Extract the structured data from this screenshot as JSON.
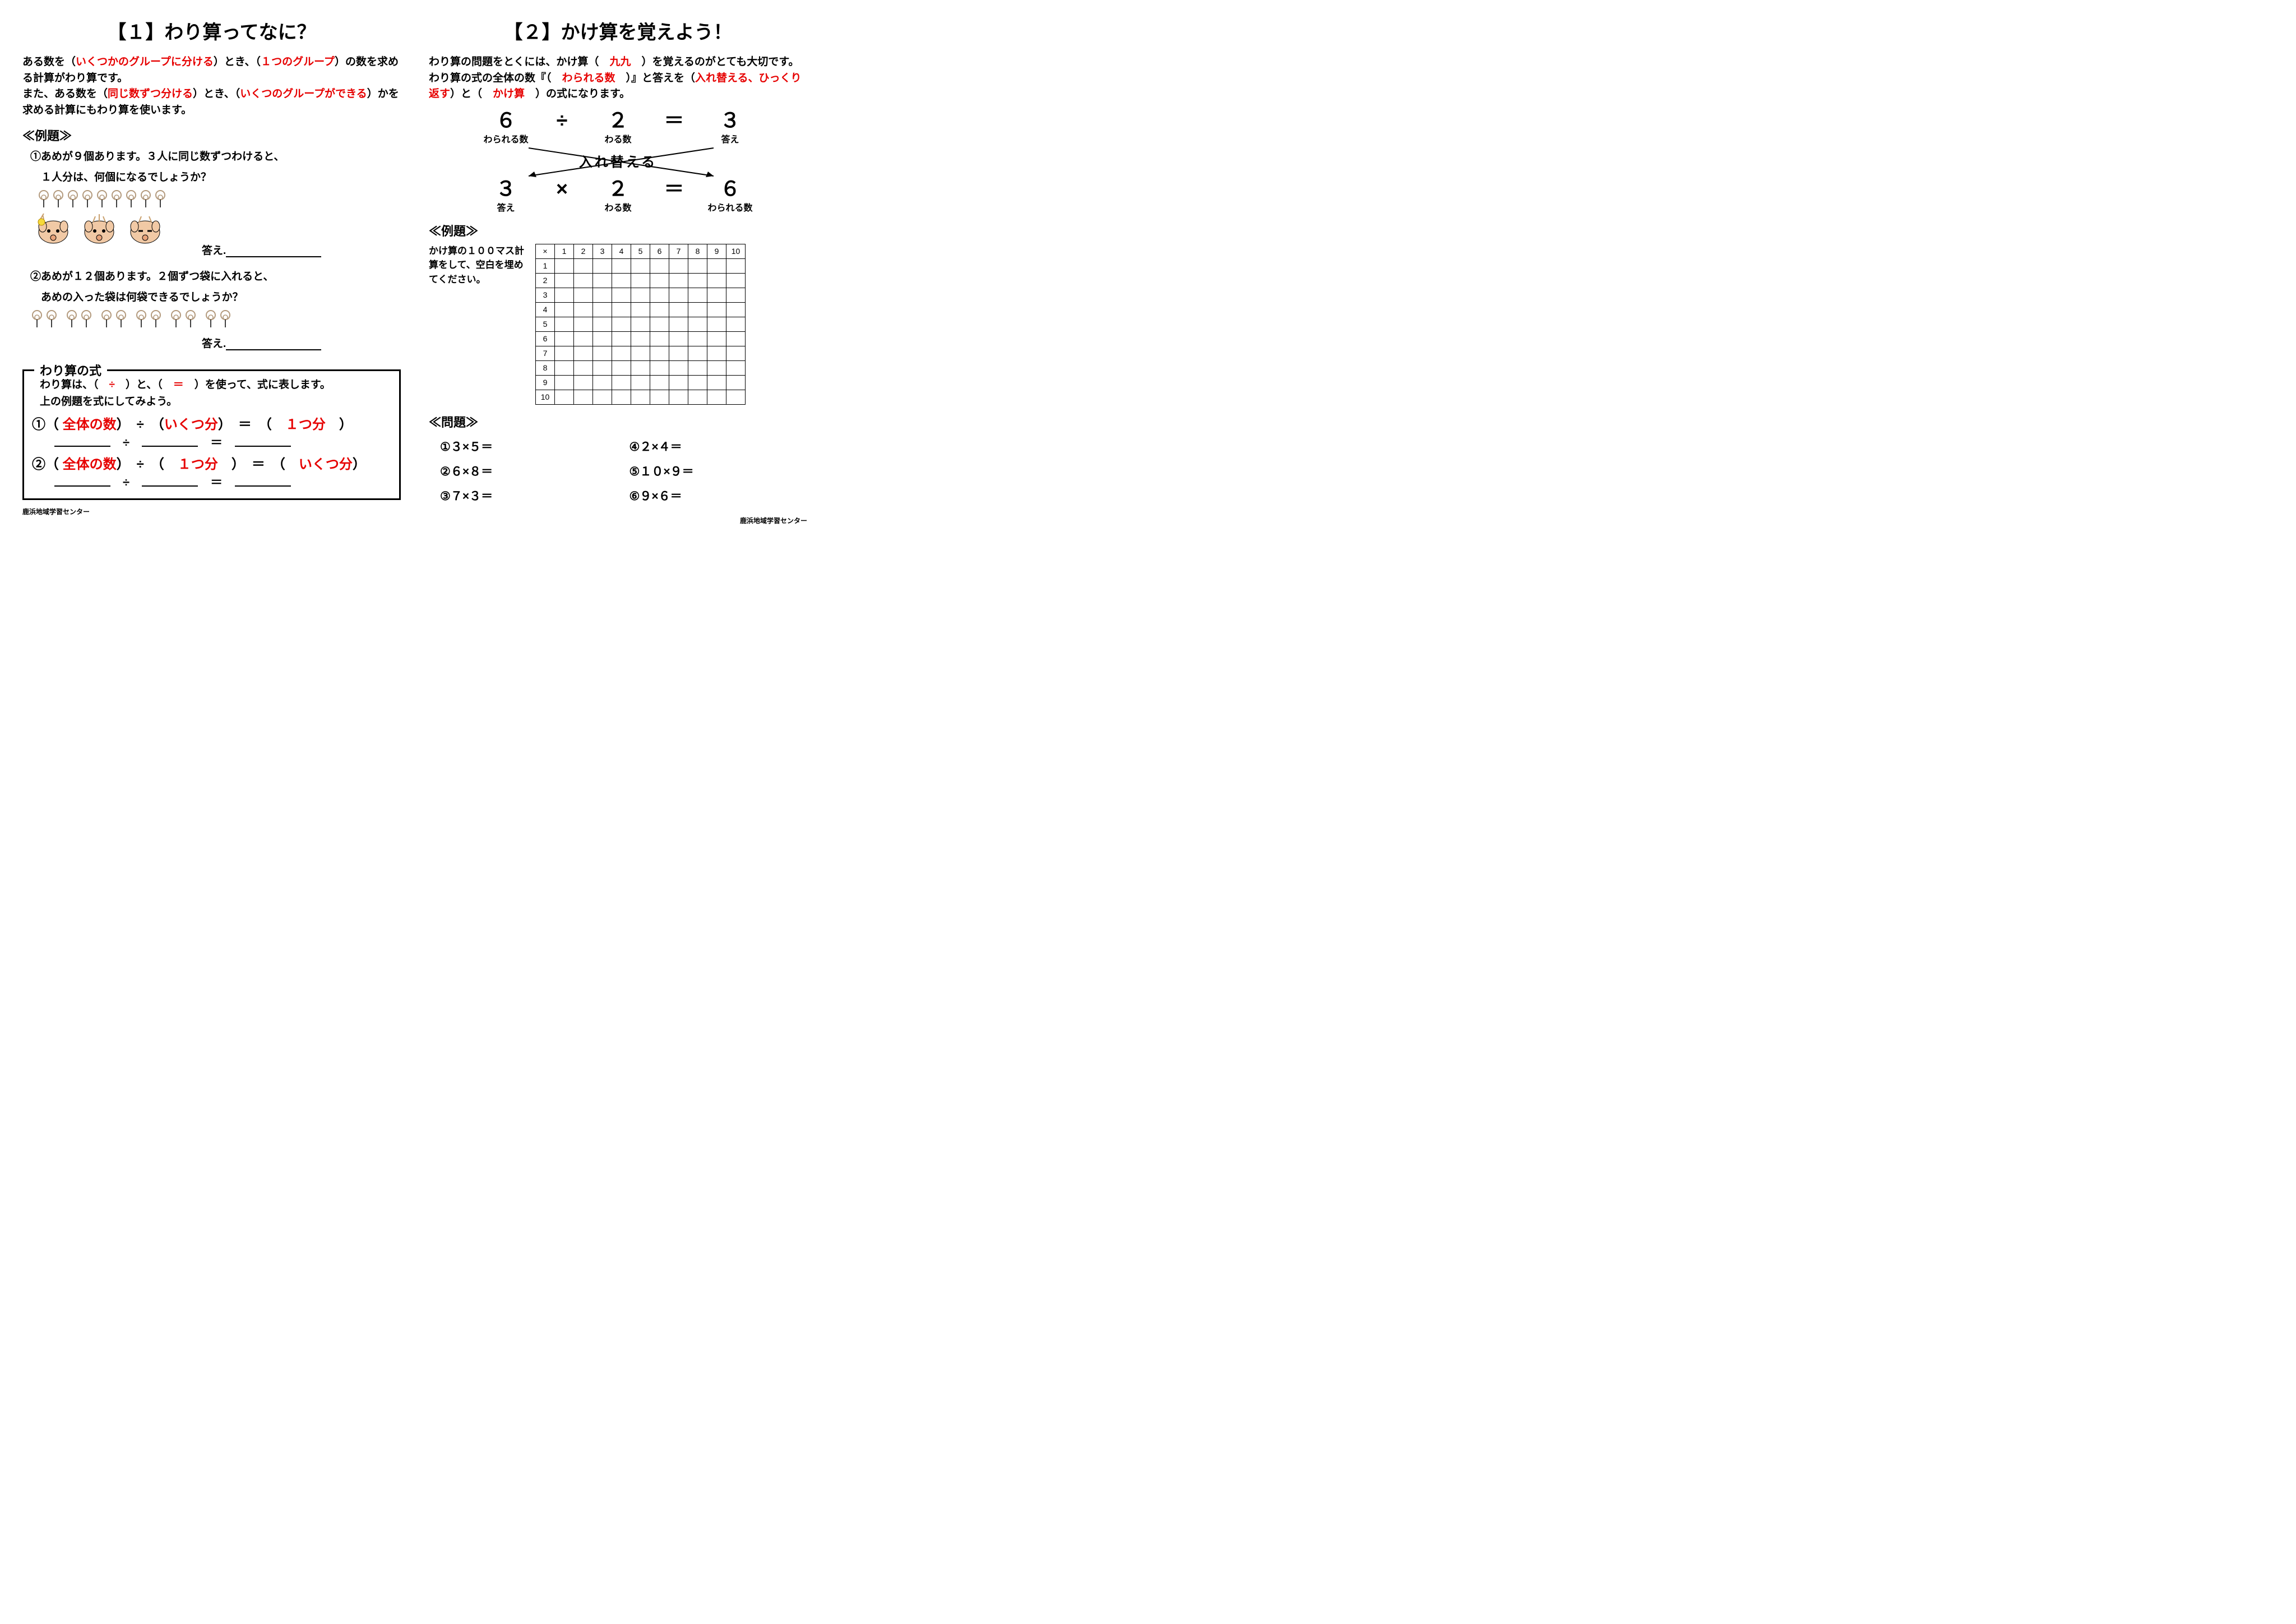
{
  "left": {
    "title": "【１】わり算ってなに？",
    "intro_parts": [
      {
        "t": "ある数を（",
        "r": false
      },
      {
        "t": "いくつかのグループに分ける",
        "r": true
      },
      {
        "t": "）とき、（",
        "r": false
      },
      {
        "t": "１つのグループ",
        "r": true
      },
      {
        "t": "）の数を求める計算がわり算です。",
        "r": false
      }
    ],
    "intro2_parts": [
      {
        "t": "また、ある数を（",
        "r": false
      },
      {
        "t": "同じ数ずつ分ける",
        "r": true
      },
      {
        "t": "）とき、（",
        "r": false
      },
      {
        "t": "いくつのグループができる",
        "r": true
      },
      {
        "t": "）かを求める計算にもわり算を使います。",
        "r": false
      }
    ],
    "example_label": "≪例題≫",
    "ex1_line1": "①あめが９個あります。３人に同じ数ずつわけると、",
    "ex1_line2": "　１人分は、何個になるでしょうか？",
    "answer_label": "答え.",
    "ex2_line1": "②あめが１２個あります。２個ずつ袋に入れると、",
    "ex2_line2": "　あめの入った袋は何袋できるでしょうか？",
    "box_title": "わり算の式",
    "box_text1_a": "わり算は、（　",
    "box_text1_div": "÷",
    "box_text1_b": "　）と、（　",
    "box_text1_eq": "＝",
    "box_text1_c": "　）を使って、式に表します。",
    "box_text2": "上の例題を式にしてみよう。",
    "eq1_head": "①（ ",
    "eq1_a": "全体の数",
    "eq1_mid1": "）　÷　（",
    "eq1_b": "いくつ分",
    "eq1_mid2": "）　＝　（　",
    "eq1_c": "１つ分",
    "eq1_tail": "　）",
    "eq2_head": "②（ ",
    "eq2_a": "全体の数",
    "eq2_mid1": "）　÷　（　",
    "eq2_b": "１つ分",
    "eq2_mid2": "　）　＝　（　",
    "eq2_c": "いくつ分",
    "eq2_tail": "）",
    "footer": "鹿浜地域学習センター"
  },
  "right": {
    "title": "【２】かけ算を覚えよう！",
    "intro_parts": [
      {
        "t": "わり算の問題をとくには、かけ算（　",
        "r": false
      },
      {
        "t": "九九",
        "r": true
      },
      {
        "t": "　）を覚えるのがとても大切です。わり算の式の全体の数『（　",
        "r": false
      },
      {
        "t": "わられる数",
        "r": true
      },
      {
        "t": "　）』と答えを（",
        "r": false
      },
      {
        "t": "入れ替える、ひっくり返す",
        "r": true
      },
      {
        "t": "）と（　",
        "r": false
      },
      {
        "t": "かけ算",
        "r": true
      },
      {
        "t": "　）の式になります。",
        "r": false
      }
    ],
    "swap": {
      "top": [
        {
          "big": "６",
          "lbl": "わられる数"
        },
        {
          "big": "÷",
          "lbl": ""
        },
        {
          "big": "２",
          "lbl": "わる数"
        },
        {
          "big": "＝",
          "lbl": ""
        },
        {
          "big": "３",
          "lbl": "答え"
        }
      ],
      "cross_text": "入れ替える",
      "bottom": [
        {
          "big": "３",
          "lbl": "答え"
        },
        {
          "big": "×",
          "lbl": ""
        },
        {
          "big": "２",
          "lbl": "わる数"
        },
        {
          "big": "＝",
          "lbl": ""
        },
        {
          "big": "６",
          "lbl": "わられる数"
        }
      ]
    },
    "example_label": "≪例題≫",
    "ex_text": "かけ算の１００マス計算をして、空白を埋めてください。",
    "grid_corner": "×",
    "grid_headers": [
      "1",
      "2",
      "3",
      "4",
      "5",
      "6",
      "7",
      "8",
      "9",
      "10"
    ],
    "problems_label": "≪問題≫",
    "problems_left": [
      "①３×５＝",
      "②６×８＝",
      "③７×３＝"
    ],
    "problems_right": [
      "④２×４＝",
      "⑤１０×９＝",
      "⑥９×６＝"
    ],
    "footer": "鹿浜地域学習センター"
  },
  "candy_color": "#b39a7d",
  "candy_count_1": 9,
  "candy_count_2": 12
}
